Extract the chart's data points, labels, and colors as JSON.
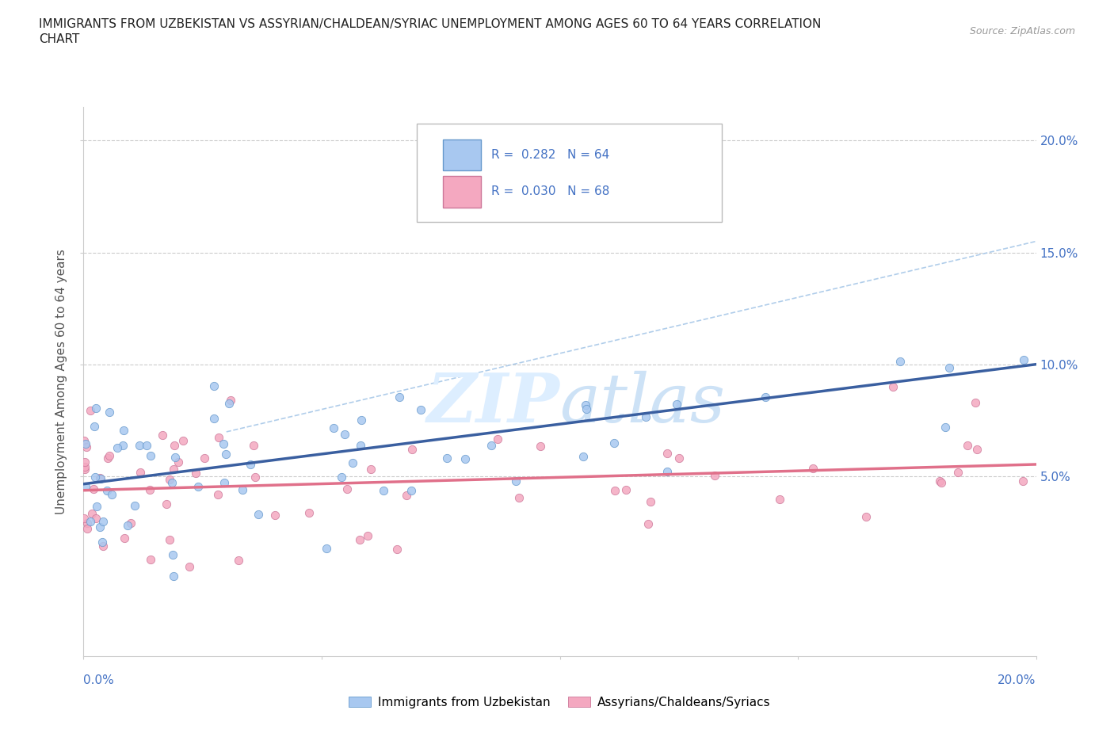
{
  "title_line1": "IMMIGRANTS FROM UZBEKISTAN VS ASSYRIAN/CHALDEAN/SYRIAC UNEMPLOYMENT AMONG AGES 60 TO 64 YEARS CORRELATION",
  "title_line2": "CHART",
  "source": "Source: ZipAtlas.com",
  "ylabel": "Unemployment Among Ages 60 to 64 years",
  "color_uzbek": "#a8c8f0",
  "color_uzbek_edge": "#6699cc",
  "color_assyrian": "#f4a8c0",
  "color_assyrian_edge": "#cc7799",
  "color_uzbek_line": "#3a5fa0",
  "color_assyrian_line": "#e0708a",
  "color_dashed": "#a8c8e8",
  "watermark_color": "#ddeeff"
}
